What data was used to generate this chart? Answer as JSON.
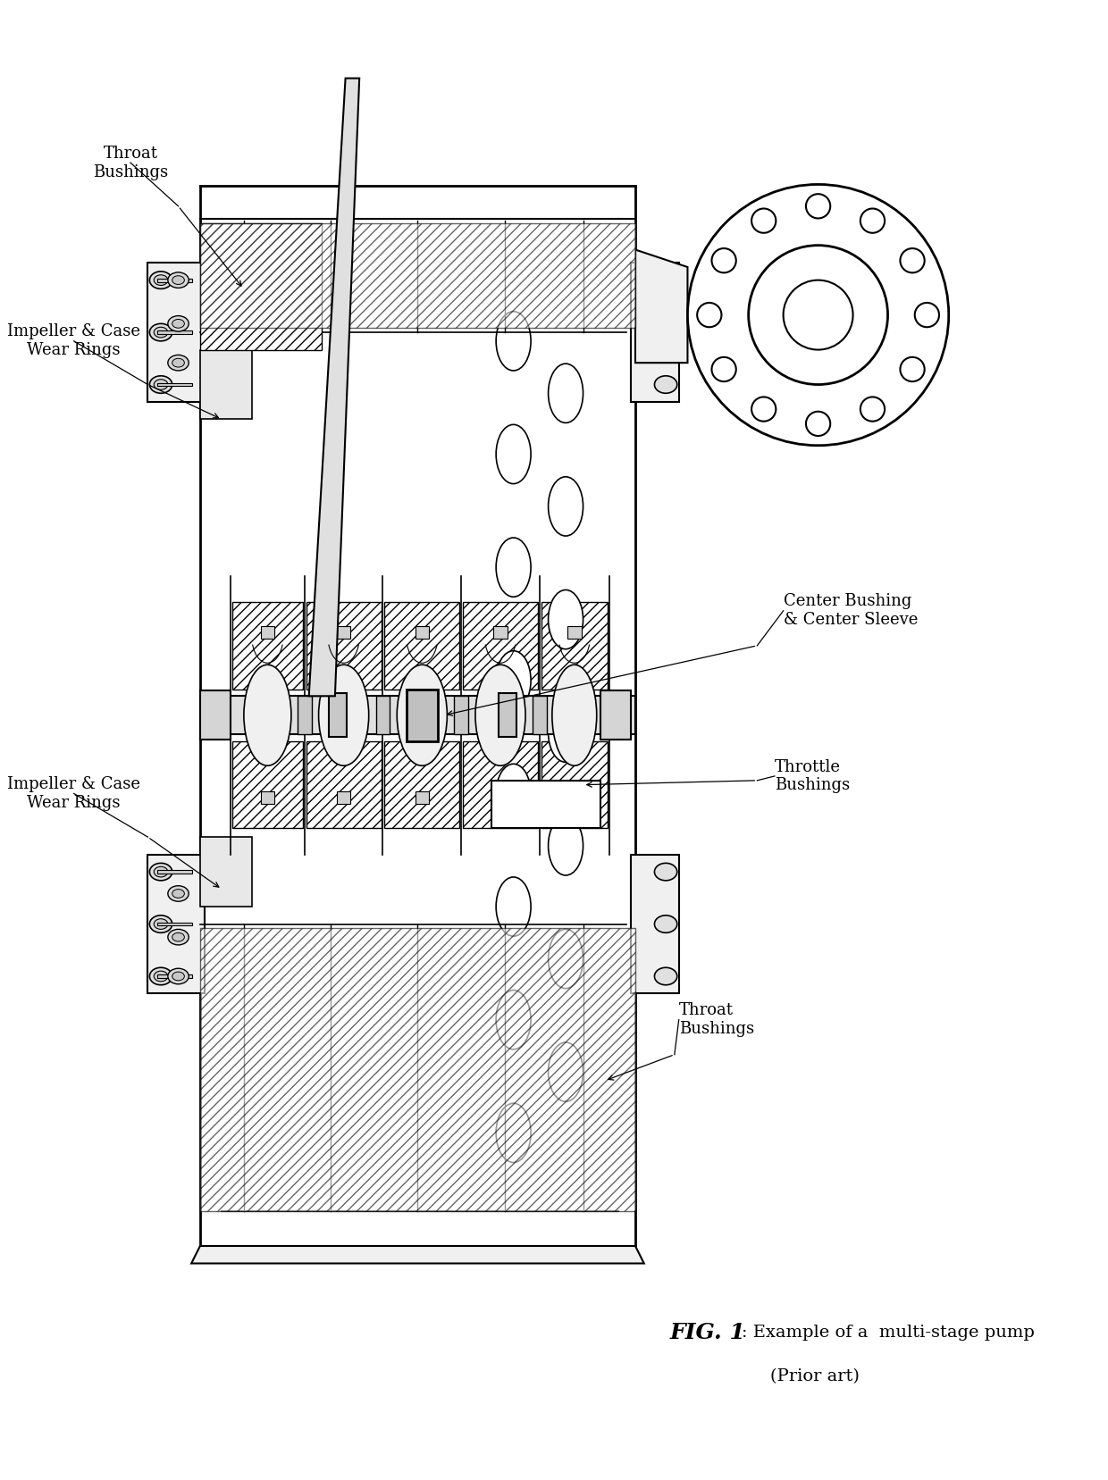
{
  "title": "FIG. 1",
  "caption": ": Example of a  multi-stage pump",
  "prior_art": "(Prior art)",
  "background_color": "#ffffff",
  "fig_width": 12.4,
  "fig_height": 16.57,
  "dpi": 100,
  "labels": {
    "throat_bushings_top": "Throat\nBushings",
    "impeller_wear_top": "Impeller & Case\nWear Rings",
    "impeller_wear_bottom": "Impeller & Case\nWear Rings",
    "center_bushing": "Center Bushing\n& Center Sleeve",
    "throttle_bushings": "Throttle\nBushings",
    "throat_bushings_bottom": "Throat\nBushings"
  },
  "annot_fontsize": 13,
  "caption_fontsize_title": 18,
  "caption_fontsize_body": 14
}
